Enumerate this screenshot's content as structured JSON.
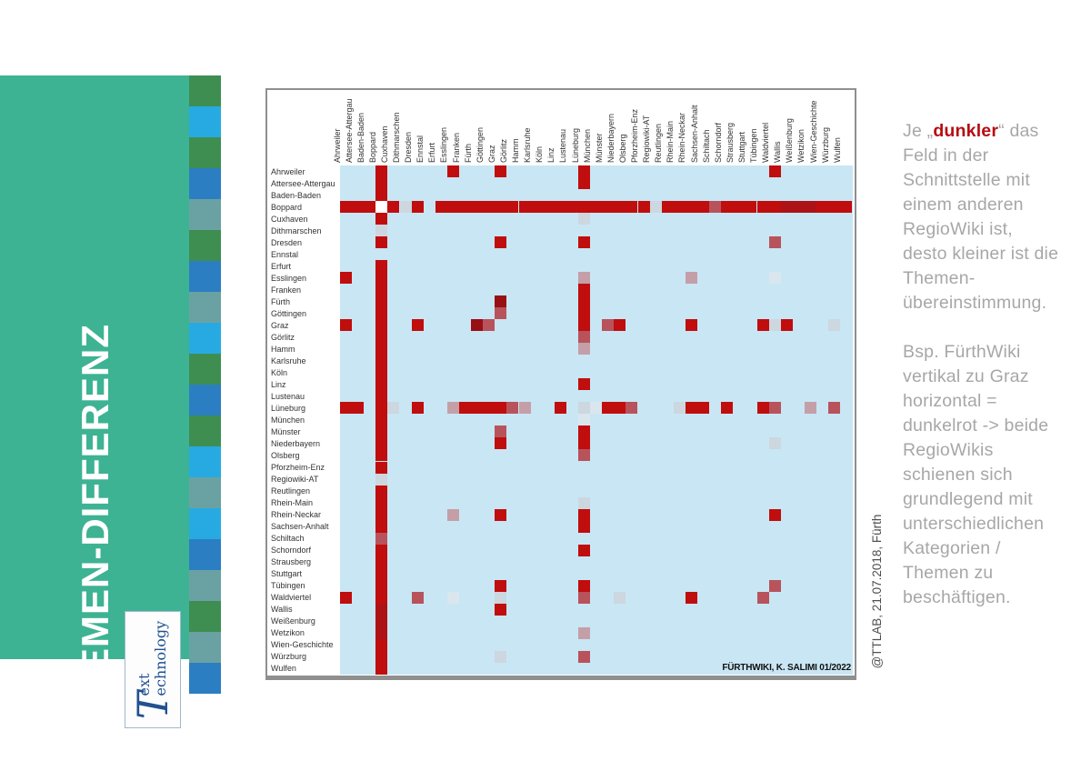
{
  "slide": {
    "title": "THEMEN-DIFFERENZ"
  },
  "sidebar": {
    "panel_color": "#3db393",
    "strip_colors": {
      "green": "#3e8e52",
      "lightblue": "#27aae1",
      "blue": "#2b7ec2",
      "grayteal": "#6aa2a3"
    },
    "strip_sequence": [
      "green",
      "lightblue",
      "green",
      "blue",
      "grayteal",
      "green",
      "blue",
      "grayteal",
      "lightblue",
      "green",
      "blue",
      "green",
      "lightblue",
      "grayteal",
      "lightblue",
      "blue",
      "grayteal",
      "green",
      "grayteal",
      "blue"
    ],
    "logo": {
      "initial": "T",
      "line1": "ext",
      "line2": "echnology",
      "text_color": "#21518f"
    }
  },
  "annotation": {
    "text_color": "#a7a7a7",
    "highlight_color": "#b50d12",
    "para1_prefix": "Je „",
    "para1_highlight": "dunkler",
    "para1_suffix": "“ das Feld in der Schnittstelle mit einem anderen RegioWiki ist, desto kleiner ist die Themen-übereinstimmung.",
    "para2": "Bsp. FürthWiki vertikal zu Graz horizontal = dunkelrot -> beide RegioWikis schienen sich grundlegend mit unterschiedlichen Kategorien / Themen zu beschäftigen."
  },
  "credits": {
    "bottom_right": "FÜRTHWIKI, K. SALIMI 01/2022",
    "vertical": "@TTLAB, 21.07.2018, Fürth"
  },
  "chart_data": {
    "type": "heatmap",
    "title": "THEMEN-DIFFERENZ",
    "labels": [
      "Ahrweiler",
      "Attersee-Attergau",
      "Baden-Baden",
      "Boppard",
      "Cuxhaven",
      "Dithmarschen",
      "Dresden",
      "Ennstal",
      "Erfurt",
      "Esslingen",
      "Franken",
      "Fürth",
      "Göttingen",
      "Graz",
      "Görlitz",
      "Hamm",
      "Karlsruhe",
      "Köln",
      "Linz",
      "Lustenau",
      "Lüneburg",
      "München",
      "Münster",
      "Niederbayern",
      "Olsberg",
      "Pforzheim-Enz",
      "Regiowiki-AT",
      "Reutlingen",
      "Rhein-Main",
      "Rhein-Neckar",
      "Sachsen-Anhalt",
      "Schiltach",
      "Schorndorf",
      "Strausberg",
      "Stuttgart",
      "Tübingen",
      "Waldviertel",
      "Wallis",
      "Weißenburg",
      "Wetzikon",
      "Wien-Geschichte",
      "Würzburg",
      "Wulfen"
    ],
    "background": "#c9e6f4",
    "levels": {
      "r": "#c00d0d",
      "r2": "#ad1216",
      "d": "#971014",
      "m": "#b8535c",
      "p": "#c49fa8",
      "lg": "#ccd7df",
      "xl": "#dae6ee",
      "w": "#ffffff"
    },
    "symmetric": true,
    "full_lines": [
      {
        "index": 3,
        "default": "r",
        "overrides": {
          "3": "w",
          "5": "lg",
          "7": "",
          "26": "lg",
          "31": "m",
          "37": "r2",
          "38": "r2",
          "39": "r2"
        }
      }
    ],
    "pairs": [
      [
        0,
        9,
        "r"
      ],
      [
        0,
        13,
        "r"
      ],
      [
        0,
        20,
        "r"
      ],
      [
        0,
        36,
        "r"
      ],
      [
        1,
        20,
        "r"
      ],
      [
        4,
        20,
        "lg"
      ],
      [
        6,
        13,
        "r"
      ],
      [
        6,
        20,
        "r"
      ],
      [
        6,
        36,
        "m"
      ],
      [
        9,
        20,
        "p"
      ],
      [
        9,
        29,
        "p"
      ],
      [
        9,
        36,
        "xl"
      ],
      [
        10,
        20,
        "r"
      ],
      [
        11,
        13,
        "d"
      ],
      [
        11,
        20,
        "r"
      ],
      [
        12,
        13,
        "m"
      ],
      [
        12,
        20,
        "r"
      ],
      [
        13,
        20,
        "r"
      ],
      [
        13,
        22,
        "m"
      ],
      [
        13,
        23,
        "r"
      ],
      [
        13,
        29,
        "r"
      ],
      [
        13,
        35,
        "r"
      ],
      [
        13,
        36,
        "lg"
      ],
      [
        13,
        37,
        "r"
      ],
      [
        13,
        41,
        "lg"
      ],
      [
        14,
        20,
        "m"
      ],
      [
        15,
        20,
        "p"
      ],
      [
        18,
        20,
        "r"
      ],
      [
        20,
        20,
        "lg"
      ],
      [
        20,
        21,
        "xl"
      ],
      [
        20,
        22,
        "r"
      ],
      [
        20,
        23,
        "r"
      ],
      [
        20,
        24,
        "m"
      ],
      [
        20,
        28,
        "lg"
      ],
      [
        20,
        29,
        "r"
      ],
      [
        20,
        30,
        "r"
      ],
      [
        20,
        32,
        "r"
      ],
      [
        20,
        35,
        "r"
      ],
      [
        20,
        36,
        "m"
      ],
      [
        20,
        39,
        "p"
      ],
      [
        20,
        41,
        "m"
      ],
      [
        23,
        36,
        "lg"
      ],
      [
        29,
        36,
        "r"
      ],
      [
        35,
        36,
        "m"
      ]
    ]
  }
}
